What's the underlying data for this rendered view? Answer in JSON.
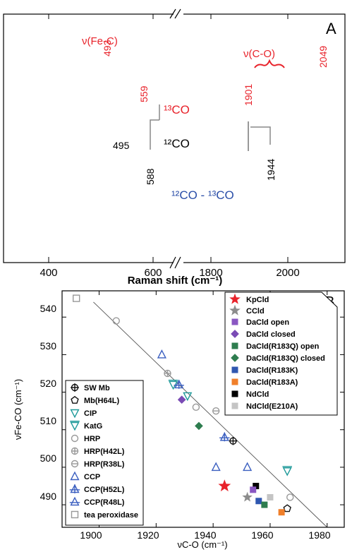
{
  "chart_data": [
    {
      "panel_label": "A",
      "type": "line",
      "xlabel": "Raman shift (cm⁻¹)",
      "x_ticks_left": [
        "400",
        "600"
      ],
      "x_ticks_right": [
        "1800",
        "2000"
      ],
      "xlim_left": [
        290,
        650
      ],
      "xlim_right": [
        1725,
        2090
      ],
      "axis_break": true,
      "grid": false,
      "series": [
        {
          "name": "¹³CO",
          "color": "#e8222a"
        },
        {
          "name": "¹²CO",
          "color": "#111111"
        },
        {
          "name": "¹²CO - ¹³CO",
          "color": "#2a4ea8"
        }
      ],
      "annotations": {
        "fe_c": "ν(Fe-C)",
        "c_o": "ν(C-O)",
        "peaks": [
          "493",
          "559",
          "495",
          "588",
          "1901",
          "2049",
          "1944"
        ]
      }
    },
    {
      "panel_label": "B",
      "type": "scatter",
      "xlabel": "νC-O (cm⁻¹)",
      "ylabel": "νFe-CO (cm⁻¹)",
      "xlim": [
        1887,
        1986
      ],
      "ylim": [
        484,
        547
      ],
      "x_ticks": [
        "1900",
        "1920",
        "1940",
        "1960",
        "1980"
      ],
      "y_ticks": [
        "490",
        "500",
        "510",
        "520",
        "530",
        "540"
      ],
      "grid": false,
      "trend_line": [
        [
          1898,
          544
        ],
        [
          1980,
          484
        ]
      ],
      "legend_left": [
        {
          "label": "SW Mb",
          "marker": "cross-circle",
          "color": "#111111"
        },
        {
          "label": "Mb(H64L)",
          "marker": "pentagon",
          "color": "#111111"
        },
        {
          "label": "CIP",
          "marker": "triangle-down",
          "color": "#1f9a9a"
        },
        {
          "label": "KatG",
          "marker": "triangle-down-bar",
          "color": "#1f9a9a"
        },
        {
          "label": "HRP",
          "marker": "circle",
          "color": "#999999"
        },
        {
          "label": "HRP(H42L)",
          "marker": "circle-plus",
          "color": "#999999"
        },
        {
          "label": "HRP(R38L)",
          "marker": "circle-minus",
          "color": "#999999"
        },
        {
          "label": "CCP",
          "marker": "triangle-up",
          "color": "#3b5fc0"
        },
        {
          "label": "CCP(H52L)",
          "marker": "triangle-up-plus",
          "color": "#3b5fc0"
        },
        {
          "label": "CCP(R48L)",
          "marker": "triangle-up-minus",
          "color": "#3b5fc0"
        },
        {
          "label": "tea peroxidase",
          "marker": "square-open",
          "color": "#999999"
        }
      ],
      "legend_right": [
        {
          "label": "KpCld",
          "marker": "star",
          "color": "#e8222a"
        },
        {
          "label": "CCld",
          "marker": "star",
          "color": "#8c8c8c"
        },
        {
          "label": "DaCld open",
          "marker": "square",
          "color": "#8a57c2"
        },
        {
          "label": "DaCld closed",
          "marker": "diamond",
          "color": "#7a4bb5"
        },
        {
          "label": "DaCld(R183Q) open",
          "marker": "square",
          "color": "#2e7d4f"
        },
        {
          "label": "DaCld(R183Q) closed",
          "marker": "diamond",
          "color": "#2e7d4f"
        },
        {
          "label": "DaCld(R183K)",
          "marker": "square",
          "color": "#2f57b0"
        },
        {
          "label": "DaCld(R183A)",
          "marker": "square",
          "color": "#f07f2a"
        },
        {
          "label": "NdCld",
          "marker": "square",
          "color": "#000000"
        },
        {
          "label": "NdCld(E210A)",
          "marker": "square",
          "color": "#c4c4c4"
        }
      ],
      "points": [
        {
          "x": 1892,
          "y": 545,
          "marker": "square-open",
          "color": "#999999"
        },
        {
          "x": 1906,
          "y": 539,
          "marker": "circle",
          "color": "#999999"
        },
        {
          "x": 1922,
          "y": 530,
          "marker": "triangle-up",
          "color": "#3b5fc0"
        },
        {
          "x": 1924,
          "y": 525,
          "marker": "circle-plus",
          "color": "#999999"
        },
        {
          "x": 1926,
          "y": 522,
          "marker": "triangle-down-bar",
          "color": "#1f9a9a"
        },
        {
          "x": 1928,
          "y": 522,
          "marker": "triangle-up-plus",
          "color": "#3b5fc0"
        },
        {
          "x": 1931,
          "y": 519,
          "marker": "triangle-down",
          "color": "#1f9a9a"
        },
        {
          "x": 1929,
          "y": 518,
          "marker": "diamond",
          "color": "#7a4bb5"
        },
        {
          "x": 1934,
          "y": 516,
          "marker": "circle",
          "color": "#999999"
        },
        {
          "x": 1941,
          "y": 515,
          "marker": "circle-minus",
          "color": "#999999"
        },
        {
          "x": 1935,
          "y": 511,
          "marker": "diamond",
          "color": "#2e7d4f"
        },
        {
          "x": 1944,
          "y": 508,
          "marker": "triangle-up-plus",
          "color": "#3b5fc0"
        },
        {
          "x": 1947,
          "y": 507,
          "marker": "cross-circle",
          "color": "#111111"
        },
        {
          "x": 1941,
          "y": 500,
          "marker": "triangle-up",
          "color": "#3b5fc0"
        },
        {
          "x": 1952,
          "y": 500,
          "marker": "triangle-up",
          "color": "#3b5fc0"
        },
        {
          "x": 1966,
          "y": 499,
          "marker": "triangle-down-bar",
          "color": "#1f9a9a"
        },
        {
          "x": 1955,
          "y": 495,
          "marker": "square",
          "color": "#000000"
        },
        {
          "x": 1944,
          "y": 495,
          "marker": "star",
          "color": "#e8222a"
        },
        {
          "x": 1954,
          "y": 494,
          "marker": "square",
          "color": "#8a57c2"
        },
        {
          "x": 1952,
          "y": 492,
          "marker": "star",
          "color": "#8c8c8c"
        },
        {
          "x": 1960,
          "y": 492,
          "marker": "square",
          "color": "#c4c4c4"
        },
        {
          "x": 1967,
          "y": 492,
          "marker": "circle",
          "color": "#999999"
        },
        {
          "x": 1956,
          "y": 491,
          "marker": "square",
          "color": "#2f57b0"
        },
        {
          "x": 1958,
          "y": 490,
          "marker": "square",
          "color": "#2e7d4f"
        },
        {
          "x": 1966,
          "y": 489,
          "marker": "pentagon",
          "color": "#111111"
        },
        {
          "x": 1964,
          "y": 488,
          "marker": "square",
          "color": "#f07f2a"
        }
      ]
    }
  ]
}
